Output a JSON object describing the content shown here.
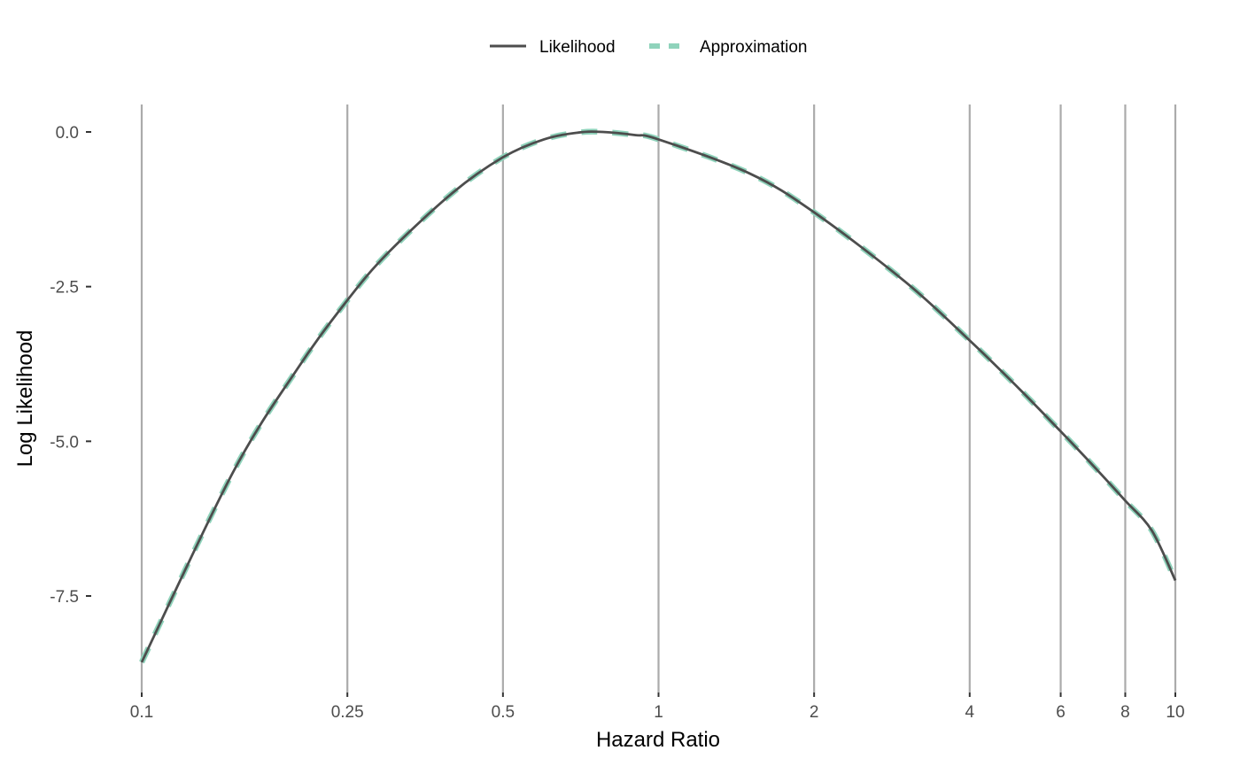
{
  "chart_data": {
    "type": "line",
    "xlabel": "Hazard Ratio",
    "ylabel": "Log Likelihood",
    "x_scale": "log",
    "xlim": [
      0.1,
      10
    ],
    "ylim": [
      -8.6,
      0
    ],
    "x_ticks": [
      {
        "value": 0.1,
        "label": "0.1"
      },
      {
        "value": 0.25,
        "label": "0.25"
      },
      {
        "value": 0.5,
        "label": "0.5"
      },
      {
        "value": 1,
        "label": "1"
      },
      {
        "value": 2,
        "label": "2"
      },
      {
        "value": 4,
        "label": "4"
      },
      {
        "value": 6,
        "label": "6"
      },
      {
        "value": 8,
        "label": "8"
      },
      {
        "value": 10,
        "label": "10"
      }
    ],
    "y_ticks": [
      {
        "value": 0,
        "label": "0.0"
      },
      {
        "value": -2.5,
        "label": "-2.5"
      },
      {
        "value": -5,
        "label": "-5.0"
      },
      {
        "value": -7.5,
        "label": "-7.5"
      }
    ],
    "vertical_gridlines": true,
    "legend": {
      "position": "top",
      "entries": [
        {
          "label": "Likelihood",
          "color": "#4d4d4d",
          "style": "solid"
        },
        {
          "label": "Approximation",
          "color": "#8fd3bb",
          "style": "dashed"
        }
      ]
    },
    "series": [
      {
        "name": "Likelihood",
        "color": "#4d4d4d",
        "style": "solid",
        "x": [
          0.1,
          0.15,
          0.2,
          0.25,
          0.3,
          0.4,
          0.5,
          0.6,
          0.7,
          0.78,
          0.9,
          1,
          1.5,
          2,
          3,
          4,
          5,
          6,
          7,
          8,
          9,
          10
        ],
        "y": [
          -8.57,
          -5.51,
          -3.83,
          -2.72,
          -1.95,
          -0.98,
          -0.41,
          -0.12,
          -0.01,
          0,
          -0.05,
          -0.12,
          -0.67,
          -1.3,
          -2.42,
          -3.37,
          -4.16,
          -4.84,
          -5.43,
          -5.96,
          -6.44,
          -7.25
        ]
      },
      {
        "name": "Approximation",
        "color": "#8fd3bb",
        "style": "dashed",
        "x": [
          0.1,
          0.15,
          0.2,
          0.25,
          0.3,
          0.4,
          0.5,
          0.6,
          0.7,
          0.78,
          0.9,
          1,
          1.5,
          2,
          3,
          4,
          5,
          6,
          7,
          8,
          9,
          10
        ],
        "y": [
          -8.57,
          -5.51,
          -3.83,
          -2.72,
          -1.95,
          -0.98,
          -0.41,
          -0.12,
          -0.01,
          0,
          -0.05,
          -0.12,
          -0.67,
          -1.3,
          -2.42,
          -3.37,
          -4.16,
          -4.84,
          -5.43,
          -5.96,
          -6.44,
          -7.25
        ]
      }
    ]
  }
}
